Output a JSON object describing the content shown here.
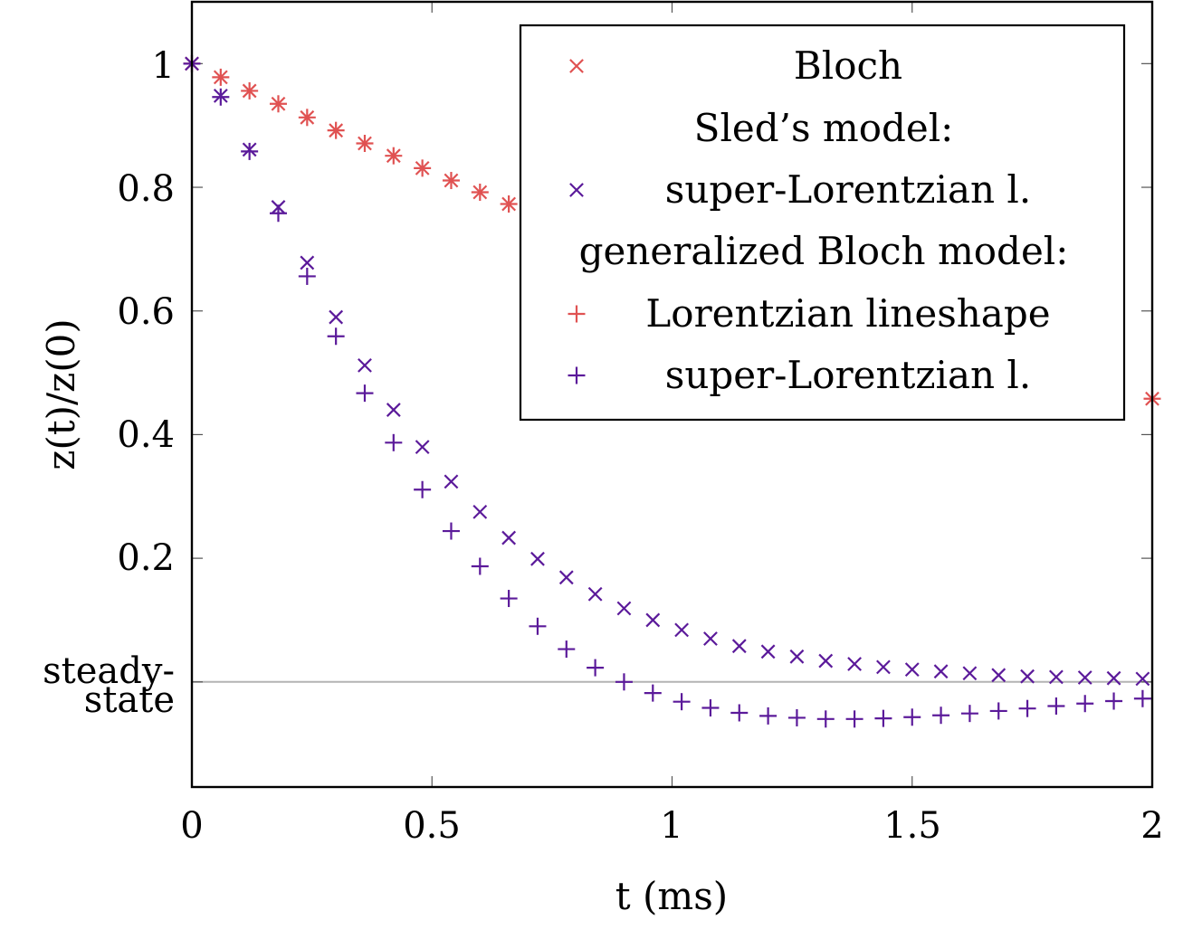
{
  "chart_data": {
    "type": "scatter",
    "title": "",
    "xlabel": "t (ms)",
    "ylabel": "z(t)/z(0)",
    "xlim": [
      0,
      2
    ],
    "ylim": [
      -0.17,
      1.1
    ],
    "xticks": [
      0,
      0.5,
      1,
      1.5,
      2
    ],
    "xtick_labels": [
      "0",
      "0.5",
      "1",
      "1.5",
      "2"
    ],
    "yticks": [
      0.2,
      0.4,
      0.6,
      0.8,
      1
    ],
    "ytick_labels": [
      "0.2",
      "0.4",
      "0.6",
      "0.8",
      "1"
    ],
    "steady_state": {
      "value": 0,
      "label_line1": "steady-",
      "label_line2": "state"
    },
    "colors": {
      "bloch": "#e05252",
      "super_lorentzian": "#5b1a9a",
      "steady_line": "#b3b3b3"
    },
    "legend": {
      "position": "top-right",
      "entries": [
        {
          "kind": "marker",
          "marker": "x",
          "color": "#e05252",
          "label": "Bloch"
        },
        {
          "kind": "heading",
          "label": "Sled’s model:"
        },
        {
          "kind": "marker",
          "marker": "x",
          "color": "#5b1a9a",
          "label": "super-Lorentzian l."
        },
        {
          "kind": "heading",
          "label": "generalized Bloch model:"
        },
        {
          "kind": "marker",
          "marker": "+",
          "color": "#e05252",
          "label": "Lorentzian lineshape"
        },
        {
          "kind": "marker",
          "marker": "+",
          "color": "#5b1a9a",
          "label": "super-Lorentzian l."
        }
      ]
    },
    "series": [
      {
        "name": "Bloch",
        "marker": "x",
        "color": "#e05252",
        "x": [
          0,
          0.06,
          0.12,
          0.18,
          0.24,
          0.3,
          0.36,
          0.42,
          0.48,
          0.54,
          0.6,
          0.66,
          2.0
        ],
        "y": [
          1.0,
          0.978,
          0.956,
          0.935,
          0.913,
          0.892,
          0.871,
          0.851,
          0.831,
          0.811,
          0.792,
          0.773,
          0.458
        ]
      },
      {
        "name": "Generalized Bloch, Lorentzian lineshape",
        "marker": "+",
        "color": "#e05252",
        "x": [
          0,
          0.06,
          0.12,
          0.18,
          0.24,
          0.3,
          0.36,
          0.42,
          0.48,
          0.54,
          0.6,
          0.66,
          2.0
        ],
        "y": [
          1.0,
          0.978,
          0.956,
          0.935,
          0.913,
          0.892,
          0.871,
          0.851,
          0.831,
          0.811,
          0.792,
          0.773,
          0.458
        ]
      },
      {
        "name": "Sled's model, super-Lorentzian l.",
        "marker": "x",
        "color": "#5b1a9a",
        "x": [
          0,
          0.06,
          0.12,
          0.18,
          0.24,
          0.3,
          0.36,
          0.42,
          0.48,
          0.54,
          0.6,
          0.66,
          0.72,
          0.78,
          0.84,
          0.9,
          0.96,
          1.02,
          1.08,
          1.14,
          1.2,
          1.26,
          1.32,
          1.38,
          1.44,
          1.5,
          1.56,
          1.62,
          1.68,
          1.74,
          1.8,
          1.86,
          1.92,
          1.98
        ],
        "y": [
          1.0,
          0.948,
          0.861,
          0.768,
          0.678,
          0.59,
          0.512,
          0.44,
          0.38,
          0.324,
          0.275,
          0.233,
          0.199,
          0.169,
          0.142,
          0.119,
          0.1,
          0.084,
          0.07,
          0.058,
          0.049,
          0.041,
          0.034,
          0.029,
          0.024,
          0.02,
          0.017,
          0.014,
          0.011,
          0.009,
          0.008,
          0.007,
          0.006,
          0.005
        ]
      },
      {
        "name": "Generalized Bloch, super-Lorentzian l.",
        "marker": "+",
        "color": "#5b1a9a",
        "x": [
          0,
          0.06,
          0.12,
          0.18,
          0.24,
          0.3,
          0.36,
          0.42,
          0.48,
          0.54,
          0.6,
          0.66,
          0.72,
          0.78,
          0.84,
          0.9,
          0.96,
          1.02,
          1.08,
          1.14,
          1.2,
          1.26,
          1.32,
          1.38,
          1.44,
          1.5,
          1.56,
          1.62,
          1.68,
          1.74,
          1.8,
          1.86,
          1.92,
          1.98
        ],
        "y": [
          1.0,
          0.946,
          0.858,
          0.758,
          0.656,
          0.559,
          0.467,
          0.387,
          0.311,
          0.244,
          0.187,
          0.135,
          0.09,
          0.053,
          0.023,
          0.0,
          -0.018,
          -0.032,
          -0.042,
          -0.05,
          -0.055,
          -0.058,
          -0.06,
          -0.06,
          -0.059,
          -0.057,
          -0.054,
          -0.051,
          -0.047,
          -0.043,
          -0.039,
          -0.035,
          -0.031,
          -0.027
        ]
      }
    ]
  }
}
